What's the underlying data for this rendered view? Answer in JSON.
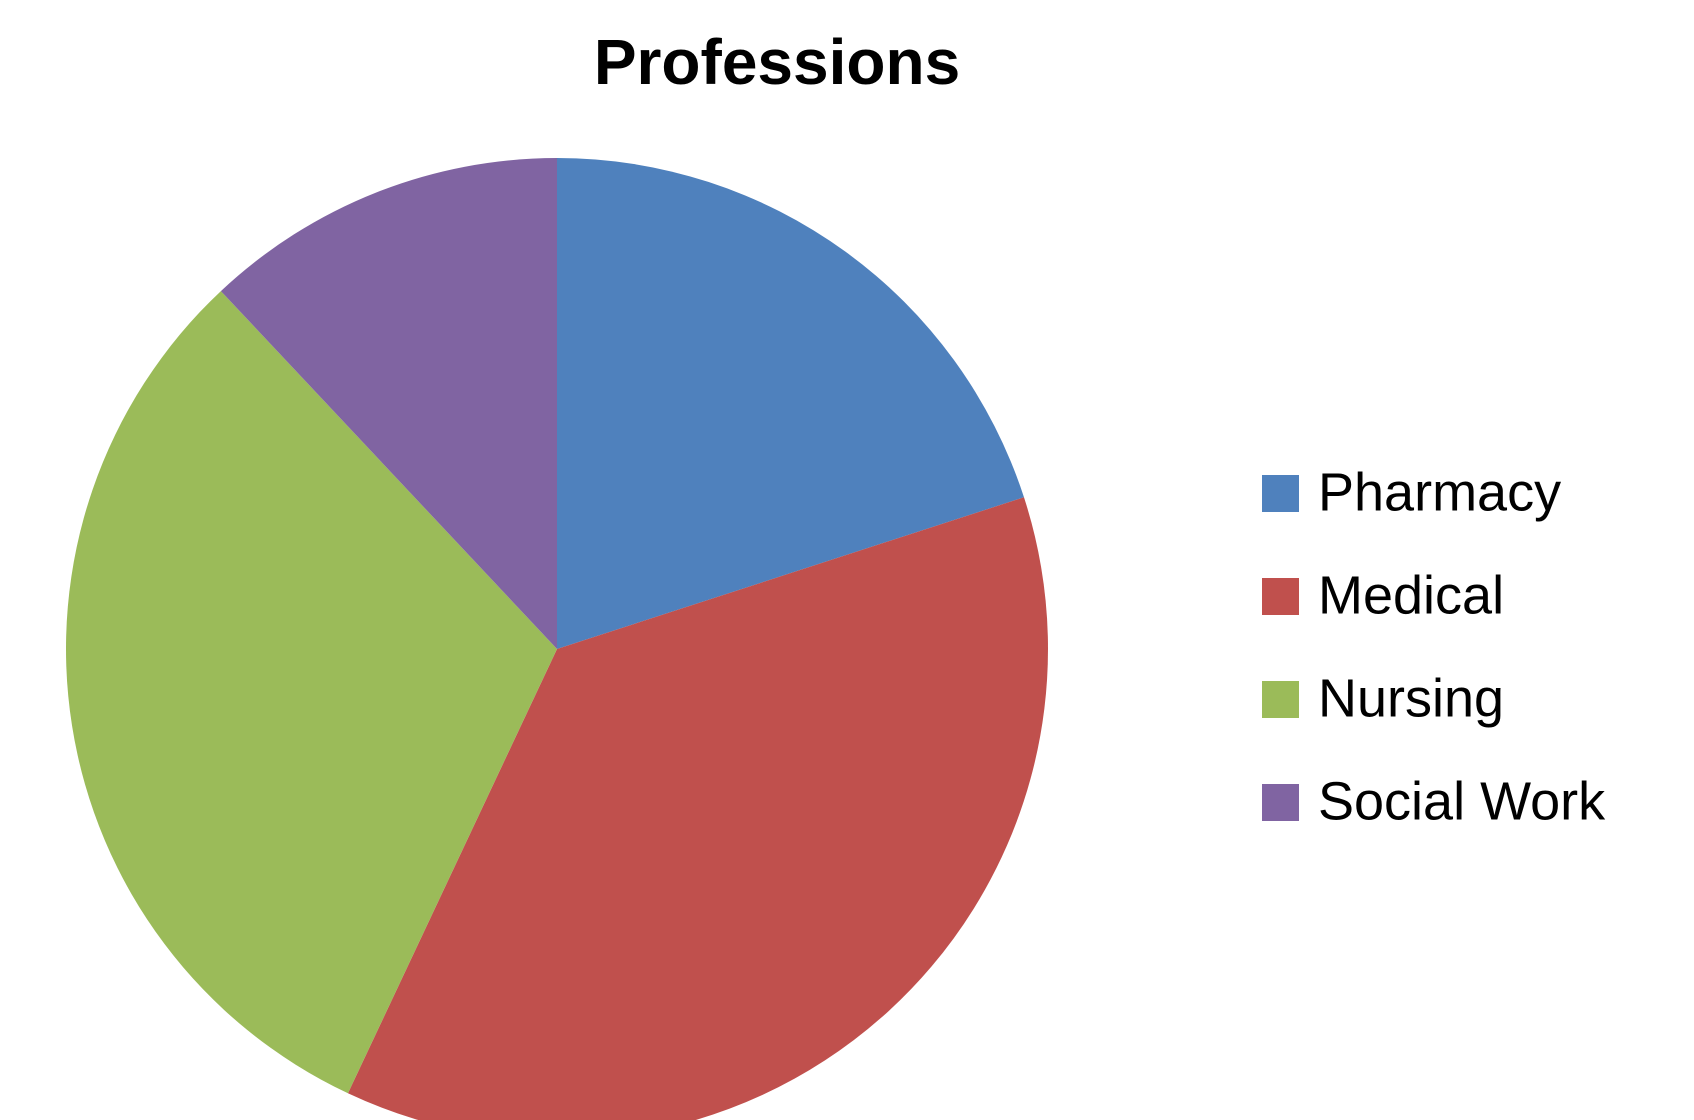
{
  "chart_data": {
    "type": "pie",
    "title": "Professions",
    "categories": [
      "Pharmacy",
      "Medical",
      "Nursing",
      "Social Work"
    ],
    "values": [
      20,
      37,
      31,
      12
    ],
    "colors": [
      "#4f81bd",
      "#c0504d",
      "#9bbb59",
      "#8064a2"
    ],
    "legend": "right"
  }
}
